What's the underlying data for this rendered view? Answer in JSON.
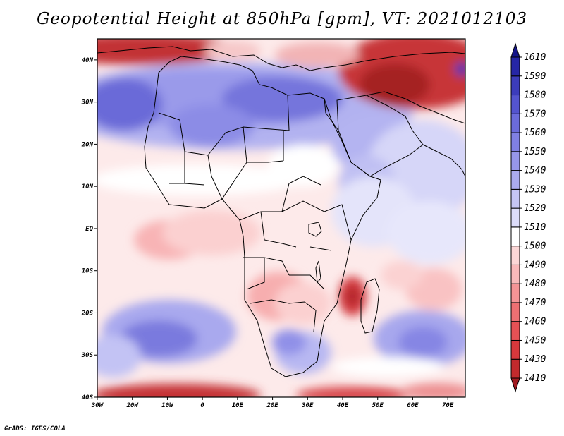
{
  "title": "Geopotential Height at 850hPa [gpm], VT: 2021012103",
  "credit": "GrADS: IGES/COLA",
  "map": {
    "variable": "Geopotential Height",
    "level": "850hPa",
    "units": "gpm",
    "valid_time": "2021012103",
    "lon_range": [
      -30,
      75
    ],
    "lat_range": [
      -40,
      45
    ],
    "lon_ticks": [
      "30W",
      "20W",
      "10W",
      "0",
      "10E",
      "20E",
      "30E",
      "40E",
      "50E",
      "60E",
      "70E"
    ],
    "lat_ticks": [
      "40N",
      "30N",
      "20N",
      "10N",
      "EQ",
      "10S",
      "20S",
      "30S",
      "40S"
    ],
    "lon_tick_values": [
      -30,
      -20,
      -10,
      0,
      10,
      20,
      30,
      40,
      50,
      60,
      70
    ],
    "lat_tick_values": [
      40,
      30,
      20,
      10,
      0,
      -10,
      -20,
      -30,
      -40
    ]
  },
  "colorbar": {
    "levels": [
      "1410",
      "1430",
      "1450",
      "1460",
      "1470",
      "1480",
      "1490",
      "1500",
      "1510",
      "1520",
      "1530",
      "1540",
      "1550",
      "1560",
      "1570",
      "1580",
      "1590",
      "1610"
    ],
    "colors": [
      "#a01a20",
      "#c22a2d",
      "#d8383c",
      "#e55155",
      "#ee7073",
      "#f59496",
      "#f9b9ba",
      "#fcd7d7",
      "#ffffff",
      "#dcdcf9",
      "#c6c6f4",
      "#ababef",
      "#9797ea",
      "#8080e3",
      "#6b6bdb",
      "#5454cf",
      "#3c3cbb",
      "#2626a6",
      "#14148a"
    ]
  }
}
